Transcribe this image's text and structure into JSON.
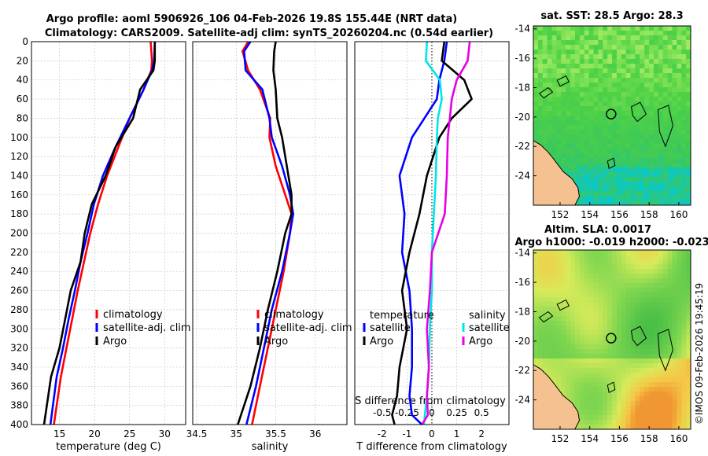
{
  "title_line1": "Argo profile: aoml 5906926_106 04-Feb-2026 19.8S 155.44E (NRT data)",
  "title_line2": "Climatology: CARS2009. Satellite-adj clim: synTS_20260204.nc (0.54d earlier)",
  "colors": {
    "climatology": "#ff0000",
    "satellite": "#0000ff",
    "argo": "#000000",
    "sal_satellite": "#00e5e5",
    "sal_argo": "#e600e6"
  },
  "depth_axis": {
    "min": 0,
    "max": 400,
    "ticks": [
      "0",
      "20",
      "40",
      "60",
      "80",
      "100",
      "120",
      "140",
      "160",
      "180",
      "200",
      "220",
      "240",
      "260",
      "280",
      "300",
      "320",
      "340",
      "360",
      "380",
      "400"
    ]
  },
  "chart_data": [
    {
      "type": "line",
      "id": "temperature",
      "xlabel": "temperature (deg C)",
      "ylabel": "depth",
      "xlim": [
        11,
        33
      ],
      "ylim": [
        400,
        0
      ],
      "xticks": [
        15,
        20,
        25,
        30
      ],
      "xtick_labels": [
        "15",
        "20",
        "25",
        "30"
      ],
      "series": [
        {
          "name": "climatology",
          "color": "#ff0000",
          "x": [
            28.0,
            28.2,
            28.1,
            27.0,
            25.0,
            23.4,
            21.8,
            20.5,
            19.4,
            18.5,
            17.6,
            16.8,
            16.0,
            15.2,
            14.2
          ],
          "y": [
            0,
            20,
            30,
            50,
            80,
            110,
            140,
            170,
            200,
            230,
            260,
            290,
            320,
            350,
            400
          ]
        },
        {
          "name": "satellite-adj. clim",
          "color": "#0000ff",
          "x": [
            28.6,
            28.5,
            28.2,
            27.0,
            25.0,
            23.0,
            21.2,
            19.9,
            19.0,
            18.0,
            17.2,
            16.3,
            15.5,
            14.6,
            13.7
          ],
          "y": [
            0,
            20,
            30,
            50,
            80,
            110,
            140,
            170,
            200,
            230,
            260,
            290,
            320,
            350,
            400
          ]
        },
        {
          "name": "Argo",
          "color": "#000000",
          "x": [
            28.6,
            28.6,
            28.4,
            26.5,
            25.5,
            23.0,
            21.6,
            19.6,
            18.6,
            18.0,
            16.6,
            15.8,
            15.0,
            13.8,
            12.8
          ],
          "y": [
            0,
            20,
            30,
            50,
            80,
            110,
            140,
            170,
            200,
            230,
            260,
            290,
            320,
            350,
            400
          ]
        }
      ],
      "legend": [
        "climatology",
        "satellite-adj. clim",
        "Argo"
      ]
    },
    {
      "type": "line",
      "id": "salinity",
      "xlabel": "salinity",
      "ylabel": "depth",
      "xlim": [
        34.45,
        36.4
      ],
      "ylim": [
        400,
        0
      ],
      "xticks": [
        34.5,
        35,
        35.5,
        36
      ],
      "xtick_labels": [
        "34.5",
        "35",
        "35.5",
        "36"
      ],
      "series": [
        {
          "name": "climatology",
          "color": "#ff0000",
          "x": [
            35.15,
            35.08,
            35.15,
            35.3,
            35.43,
            35.42,
            35.5,
            35.62,
            35.7,
            35.68,
            35.6,
            35.5,
            35.4,
            35.3,
            35.2
          ],
          "y": [
            0,
            10,
            30,
            50,
            80,
            100,
            130,
            160,
            180,
            200,
            240,
            280,
            320,
            360,
            400
          ]
        },
        {
          "name": "satellite-adj. clim",
          "color": "#0000ff",
          "x": [
            35.18,
            35.1,
            35.12,
            35.33,
            35.42,
            35.45,
            35.58,
            35.68,
            35.72,
            35.68,
            35.58,
            35.45,
            35.35,
            35.25,
            35.13
          ],
          "y": [
            0,
            10,
            30,
            50,
            80,
            100,
            130,
            160,
            180,
            200,
            240,
            280,
            320,
            360,
            400
          ]
        },
        {
          "name": "Argo",
          "color": "#000000",
          "x": [
            35.5,
            35.48,
            35.47,
            35.5,
            35.52,
            35.58,
            35.64,
            35.7,
            35.7,
            35.62,
            35.52,
            35.4,
            35.3,
            35.18,
            35.02
          ],
          "y": [
            0,
            10,
            30,
            50,
            80,
            100,
            130,
            160,
            180,
            200,
            240,
            280,
            320,
            360,
            400
          ]
        }
      ],
      "legend": [
        "climatology",
        "satellite-adj. clim",
        "Argo"
      ]
    },
    {
      "type": "line",
      "id": "difference",
      "xlabel": "T difference from climatology",
      "x2label": "S difference from climatology",
      "xlim": [
        -3.1,
        3.1
      ],
      "ylim": [
        400,
        0
      ],
      "xticks": [
        -2,
        -1,
        0,
        1,
        2
      ],
      "xtick_labels": [
        "-2",
        "-1",
        "0",
        "1",
        "2"
      ],
      "x2lim": [
        -0.775,
        0.775
      ],
      "x2ticks": [
        -0.5,
        -0.25,
        0,
        0.25,
        0.5
      ],
      "x2tick_labels": [
        "-0.5",
        "-0.25",
        "0",
        "0.25",
        "0.5"
      ],
      "series": [
        {
          "name": "temperature satellite",
          "color": "#0000ff",
          "axis": "T",
          "x": [
            0.6,
            0.5,
            0.3,
            0.2,
            -0.3,
            -0.8,
            -1.3,
            -1.1,
            -1.2,
            -0.9,
            -0.8,
            -0.8,
            -0.9,
            -0.8,
            -0.4
          ],
          "y": [
            0,
            20,
            40,
            60,
            80,
            100,
            140,
            180,
            220,
            260,
            300,
            340,
            370,
            390,
            400
          ]
        },
        {
          "name": "temperature Argo",
          "color": "#000000",
          "axis": "T",
          "x": [
            0.5,
            0.4,
            1.3,
            1.6,
            0.8,
            0.3,
            -0.2,
            -0.5,
            -0.9,
            -1.2,
            -1.0,
            -1.3,
            -1.4,
            -1.6,
            -1.5
          ],
          "y": [
            0,
            20,
            40,
            60,
            80,
            100,
            140,
            180,
            220,
            260,
            300,
            340,
            370,
            390,
            400
          ]
        },
        {
          "name": "salinity satellite",
          "color": "#00e5e5",
          "axis": "S",
          "x": [
            -0.05,
            -0.06,
            0.08,
            0.1,
            0.06,
            0.05,
            0.04,
            0.02,
            0.0,
            0.0,
            -0.02,
            -0.03,
            -0.05,
            -0.07,
            -0.08
          ],
          "y": [
            0,
            20,
            40,
            60,
            80,
            100,
            140,
            180,
            220,
            260,
            300,
            340,
            370,
            390,
            400
          ]
        },
        {
          "name": "salinity Argo",
          "color": "#e600e6",
          "axis": "S",
          "x": [
            0.38,
            0.36,
            0.25,
            0.2,
            0.18,
            0.16,
            0.15,
            0.13,
            0.0,
            -0.02,
            -0.05,
            -0.03,
            -0.05,
            -0.04,
            -0.1
          ],
          "y": [
            0,
            20,
            40,
            60,
            80,
            100,
            140,
            180,
            220,
            260,
            300,
            340,
            370,
            390,
            400
          ]
        }
      ],
      "legend_temperature_title": "temperature",
      "legend_salinity_title": "salinity",
      "legend_temperature": [
        "satellite",
        "Argo"
      ],
      "legend_salinity": [
        "satellite",
        "Argo"
      ]
    },
    {
      "type": "heatmap",
      "id": "sst_map",
      "title": "sat. SST: 28.5 Argo: 28.3",
      "xlim": [
        150.2,
        160.8
      ],
      "ylim": [
        -26.0,
        -13.8
      ],
      "xticks": [
        152,
        154,
        156,
        158,
        160
      ],
      "xtick_labels": [
        "152",
        "154",
        "156",
        "158",
        "160"
      ],
      "yticks": [
        -14,
        -16,
        -18,
        -20,
        -22,
        -24
      ],
      "ytick_labels": [
        "-14",
        "-16",
        "-18",
        "-20",
        "-22",
        "-24"
      ],
      "marker": {
        "lon": 155.44,
        "lat": -19.8
      },
      "land_color": "#f5c190"
    },
    {
      "type": "heatmap",
      "id": "sla_map",
      "title": "Altim. SLA: 0.0017",
      "subtitle": "Argo h1000: -0.019 h2000: -0.023",
      "xlim": [
        150.2,
        160.8
      ],
      "ylim": [
        -26.0,
        -13.8
      ],
      "xticks": [
        152,
        154,
        156,
        158,
        160
      ],
      "xtick_labels": [
        "152",
        "154",
        "156",
        "158",
        "160"
      ],
      "yticks": [
        -14,
        -16,
        -18,
        -20,
        -22,
        -24
      ],
      "ytick_labels": [
        "-14",
        "-16",
        "-18",
        "-20",
        "-22",
        "-24"
      ],
      "marker": {
        "lon": 155.44,
        "lat": -19.8
      },
      "land_color": "#f5c190"
    }
  ],
  "footer": "©IMOS 09-Feb-2026 19:45:19"
}
